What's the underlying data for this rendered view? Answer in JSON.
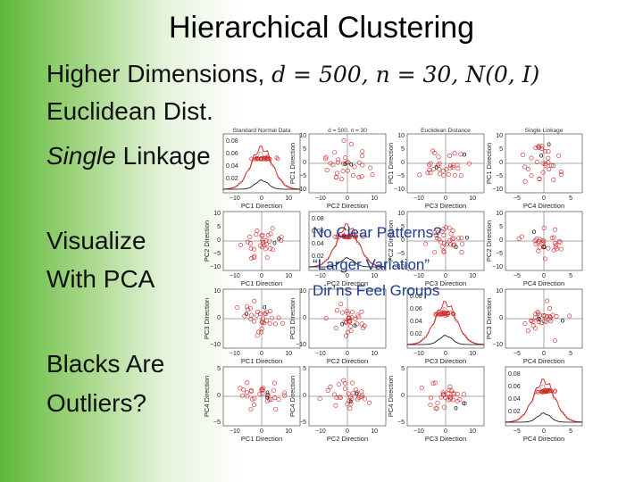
{
  "title": "Hierarchical Clustering",
  "bullets": [
    {
      "text": "Higher Dimensions, ",
      "math": "d = 500, n = 30, N(0, I)"
    },
    {
      "text": "Euclidean Dist."
    },
    {
      "italic": "Single",
      "text": " Linkage"
    },
    {
      "text": "Visualize"
    },
    {
      "text": "With PCA"
    },
    {
      "text": "Blacks Are"
    },
    {
      "text": "Outliers?"
    }
  ],
  "matrix": {
    "panel_titles": [
      "Standard Normal Data",
      "d = 500, n = 30",
      "Euclidean Distance",
      "Single Linkage"
    ],
    "x_labels": [
      "PC1 Direction",
      "PC2 Direction",
      "PC3 Direction",
      "PC4 Direction"
    ],
    "y_labels": [
      "PC1 Direction",
      "PC2 Direction",
      "PC3 Direction",
      "PC4 Direction"
    ],
    "x_ticks": [
      [
        "−10",
        "0",
        "10"
      ],
      [
        "−10",
        "0",
        "10"
      ],
      [
        "−10",
        "0",
        "10"
      ],
      [
        "−5",
        "0",
        "5"
      ]
    ],
    "y_ticks": [
      [
        "10",
        "5",
        "0",
        "−5",
        "−10"
      ],
      [
        "10",
        "5",
        "0",
        "−5",
        "−10"
      ],
      [
        "10",
        "0",
        "−10"
      ],
      [
        "5",
        "0",
        "−5"
      ]
    ],
    "density_ticks": [
      "0.08",
      "0.06",
      "0.04",
      "0.02"
    ]
  },
  "overlay": [
    "No Clear Patterns?",
    "“Larger Variation”",
    "Dir’ns Feel Groups"
  ]
}
